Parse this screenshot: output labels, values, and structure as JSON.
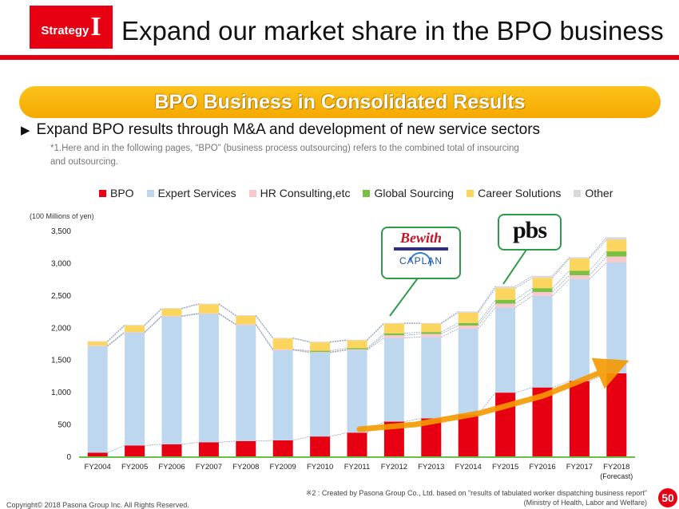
{
  "header": {
    "badge_word": "Strategy",
    "badge_numeral": "I",
    "title": "Expand our market share in the BPO business"
  },
  "banner": "BPO Business in Consolidated Results",
  "lead": {
    "arrow": "▶",
    "text": "Expand BPO results through M&A and development of new service sectors"
  },
  "footnote1": "*1.Here and in the following pages, “BPO” (business process outsourcing) refers to the combined total of insourcing and outsourcing.",
  "logos": {
    "bewith": "Bewith",
    "caplan": "CAPLAN",
    "pbs": "pbs"
  },
  "footnote2": {
    "line1": "※2 : Created by Pasona Group Co., Ltd. based on \"results of tabulated worker dispatching business report\"",
    "line2": "(Ministry of Health, Labor and Welfare)"
  },
  "copyright": "Copyright© 2018 Pasona Group Inc. All Rights Reserved.",
  "page_number": "50",
  "chart_data": {
    "type": "bar",
    "stacked": true,
    "unit_label": "(100 Millions of yen)",
    "categories": [
      "FY2004",
      "FY2005",
      "FY2006",
      "FY2007",
      "FY2008",
      "FY2009",
      "FY2010",
      "FY2011",
      "FY2012",
      "FY2013",
      "FY2014",
      "FY2015",
      "FY2016",
      "FY2017",
      "FY2018"
    ],
    "category_sublabels": {
      "FY2018": "(Forecast)"
    },
    "series": [
      {
        "name": "BPO",
        "color": "#e60012",
        "values": [
          70,
          180,
          200,
          230,
          250,
          260,
          320,
          380,
          550,
          600,
          660,
          1000,
          1080,
          1180,
          1300
        ]
      },
      {
        "name": "Expert Services",
        "color": "#bdd7ee",
        "values": [
          1650,
          1750,
          1980,
          1990,
          1800,
          1400,
          1300,
          1280,
          1300,
          1260,
          1330,
          1320,
          1420,
          1580,
          1720
        ]
      },
      {
        "name": "HR Consulting,etc",
        "color": "#f8c8cc",
        "values": [
          10,
          10,
          10,
          10,
          10,
          10,
          10,
          10,
          40,
          50,
          50,
          60,
          60,
          60,
          90
        ]
      },
      {
        "name": "Global Sourcing",
        "color": "#7ac143",
        "values": [
          0,
          0,
          0,
          0,
          0,
          0,
          20,
          20,
          30,
          30,
          40,
          60,
          60,
          70,
          80
        ]
      },
      {
        "name": "Career Solutions",
        "color": "#fcd55f",
        "values": [
          60,
          100,
          110,
          140,
          130,
          170,
          130,
          120,
          150,
          130,
          160,
          180,
          160,
          190,
          180
        ]
      },
      {
        "name": "Other",
        "color": "#d9d9d9",
        "values": [
          10,
          10,
          10,
          10,
          10,
          10,
          10,
          10,
          10,
          10,
          20,
          30,
          30,
          20,
          40
        ]
      }
    ],
    "ylim": [
      0,
      3500
    ],
    "yticks": [
      0,
      500,
      1000,
      1500,
      2000,
      2500,
      3000,
      3500
    ],
    "ytick_labels": [
      "0",
      "500",
      "1,000",
      "1,500",
      "2,000",
      "2,500",
      "3,000",
      "3,500"
    ],
    "legend_position": "top",
    "grid": false
  }
}
